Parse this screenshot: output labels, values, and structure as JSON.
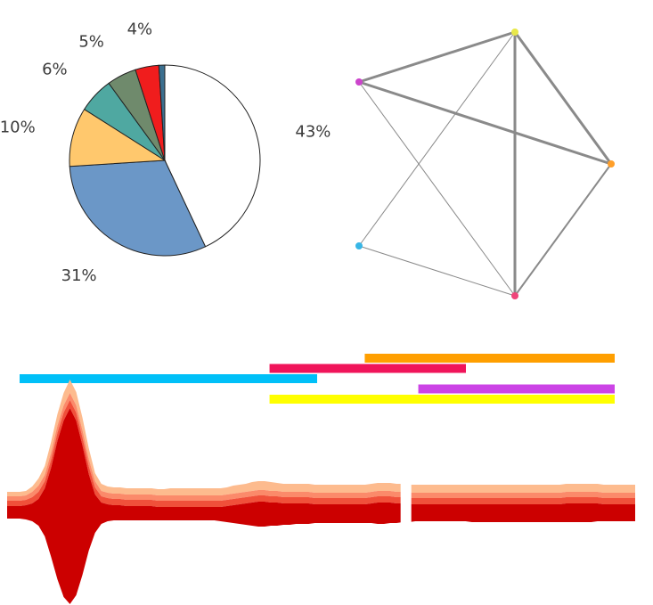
{
  "chart_data": [
    {
      "type": "pie",
      "slices": [
        {
          "label": "43%",
          "value": 43,
          "color": "#ffffff"
        },
        {
          "label": "31%",
          "value": 31,
          "color": "#6b97c7"
        },
        {
          "label": "10%",
          "value": 10,
          "color": "#ffc86d"
        },
        {
          "label": "6%",
          "value": 6,
          "color": "#4fa8a1"
        },
        {
          "label": "5%",
          "value": 5,
          "color": "#6f8a6c"
        },
        {
          "label": "4%",
          "value": 4,
          "color": "#f01d1d"
        },
        {
          "label": "",
          "value": 1,
          "color": "#3b6f8f"
        }
      ]
    },
    {
      "type": "network",
      "nodes": [
        {
          "id": "top",
          "color": "#e8e84a"
        },
        {
          "id": "left",
          "color": "#cc44cc"
        },
        {
          "id": "right",
          "color": "#ff9f2a"
        },
        {
          "id": "lower-left",
          "color": "#38b6e6"
        },
        {
          "id": "bottom",
          "color": "#f0457a"
        }
      ],
      "edges": [
        {
          "source": "top",
          "target": "left",
          "weight": 3
        },
        {
          "source": "top",
          "target": "right",
          "weight": 3
        },
        {
          "source": "left",
          "target": "right",
          "weight": 3
        },
        {
          "source": "top",
          "target": "bottom",
          "weight": 3
        },
        {
          "source": "right",
          "target": "bottom",
          "weight": 2
        },
        {
          "source": "top",
          "target": "lower-left",
          "weight": 1
        },
        {
          "source": "left",
          "target": "bottom",
          "weight": 1
        },
        {
          "source": "lower-left",
          "target": "bottom",
          "weight": 1
        }
      ]
    },
    {
      "type": "timeline",
      "range": [
        0,
        100
      ],
      "bars": [
        {
          "start": 58,
          "end": 100,
          "row": 0,
          "color": "#ff9f00"
        },
        {
          "start": 42,
          "end": 75,
          "row": 1,
          "color": "#f0145a"
        },
        {
          "start": 0,
          "end": 50,
          "row": 2,
          "color": "#00c0f8"
        },
        {
          "start": 67,
          "end": 100,
          "row": 3,
          "color": "#cc44e6"
        },
        {
          "start": 42,
          "end": 100,
          "row": 4,
          "color": "#ffff00"
        }
      ]
    },
    {
      "type": "area",
      "stacked": true,
      "layers": [
        {
          "color": "#cc0000",
          "above": [
            2,
            2,
            2,
            3,
            5,
            10,
            22,
            45,
            75,
            98,
            112,
            98,
            70,
            38,
            15,
            6,
            4,
            3,
            3,
            2,
            2,
            2,
            2,
            2,
            1,
            1,
            1,
            1,
            1,
            1,
            1,
            1,
            1,
            1,
            1,
            2,
            3,
            4,
            5,
            6,
            7,
            7,
            6,
            6,
            5,
            5,
            5,
            5,
            5,
            4,
            4,
            4,
            4,
            4,
            4,
            4,
            4,
            4,
            5,
            6,
            6,
            6,
            5,
            5,
            4,
            4,
            4,
            4,
            4,
            4,
            4,
            4,
            4,
            4,
            4,
            4,
            4,
            4,
            4,
            4,
            4,
            4,
            4,
            4,
            4,
            4,
            4,
            4,
            4,
            5,
            5,
            5,
            5,
            5,
            5,
            4,
            4,
            4,
            4,
            4,
            4
          ],
          "below": [
            12,
            12,
            12,
            13,
            15,
            20,
            32,
            55,
            80,
            100,
            108,
            98,
            75,
            48,
            28,
            18,
            15,
            14,
            14,
            14,
            14,
            14,
            14,
            14,
            14,
            14,
            14,
            14,
            14,
            14,
            14,
            14,
            14,
            14,
            15,
            16,
            17,
            18,
            19,
            20,
            21,
            21,
            20,
            20,
            19,
            19,
            18,
            18,
            18,
            17,
            17,
            17,
            17,
            17,
            17,
            17,
            17,
            17,
            17,
            18,
            18,
            17,
            17,
            16,
            16,
            15,
            15,
            15,
            15,
            15,
            15,
            15,
            15,
            15,
            16,
            16,
            16,
            16,
            16,
            16,
            16,
            16,
            16,
            16,
            16,
            16,
            16,
            16,
            16,
            16,
            16,
            16,
            16,
            16,
            15,
            15,
            15,
            15,
            15,
            15,
            15
          ]
        },
        {
          "color": "#f0503a",
          "above": [
            6,
            6,
            6,
            6,
            7,
            8,
            8,
            9,
            9,
            9,
            9,
            9,
            9,
            9,
            8,
            7,
            7,
            7,
            7,
            7,
            7,
            7,
            7,
            7,
            7,
            7,
            7,
            7,
            7,
            7,
            7,
            7,
            7,
            7,
            7,
            7,
            7,
            7,
            7,
            7,
            7,
            7,
            7,
            7,
            7,
            7,
            7,
            7,
            7,
            7,
            7,
            7,
            7,
            7,
            7,
            7,
            7,
            7,
            7,
            7,
            7,
            7,
            7,
            7,
            7,
            7,
            7,
            7,
            7,
            7,
            7,
            7,
            7,
            7,
            7,
            7,
            7,
            7,
            7,
            7,
            7,
            7,
            7,
            7,
            7,
            7,
            7,
            7,
            7,
            7,
            7,
            7,
            7,
            7,
            7,
            7,
            7,
            7,
            7,
            7,
            7
          ]
        },
        {
          "color": "#fb8a6a",
          "above": [
            5,
            5,
            5,
            5,
            6,
            7,
            7,
            8,
            8,
            8,
            8,
            8,
            8,
            8,
            7,
            6,
            6,
            6,
            6,
            6,
            6,
            6,
            6,
            6,
            6,
            6,
            6,
            6,
            6,
            6,
            6,
            6,
            6,
            6,
            6,
            6,
            6,
            6,
            6,
            6,
            6,
            6,
            6,
            6,
            6,
            6,
            6,
            6,
            6,
            6,
            6,
            6,
            6,
            6,
            6,
            6,
            6,
            6,
            6,
            6,
            6,
            6,
            6,
            6,
            6,
            6,
            6,
            6,
            6,
            6,
            6,
            6,
            6,
            6,
            6,
            6,
            6,
            6,
            6,
            6,
            6,
            6,
            6,
            6,
            6,
            6,
            6,
            6,
            6,
            6,
            6,
            6,
            6,
            6,
            6,
            6,
            6,
            6,
            6,
            6,
            6
          ]
        },
        {
          "color": "#fdbb8e",
          "above": [
            5,
            5,
            5,
            5,
            6,
            8,
            10,
            12,
            13,
            14,
            15,
            15,
            14,
            12,
            9,
            8,
            7,
            7,
            7,
            7,
            7,
            7,
            7,
            7,
            7,
            7,
            8,
            8,
            8,
            8,
            8,
            8,
            8,
            8,
            8,
            8,
            9,
            9,
            9,
            10,
            10,
            10,
            10,
            9,
            9,
            9,
            9,
            9,
            9,
            9,
            9,
            9,
            9,
            9,
            9,
            9,
            9,
            9,
            9,
            9,
            9,
            9,
            9,
            9,
            9,
            9,
            9,
            9,
            9,
            9,
            9,
            9,
            9,
            9,
            9,
            9,
            9,
            9,
            9,
            9,
            9,
            9,
            9,
            9,
            9,
            9,
            9,
            9,
            9,
            9,
            9,
            9,
            9,
            9,
            9,
            9,
            9,
            9,
            9,
            9,
            9
          ]
        }
      ],
      "gap": [
        63,
        64
      ]
    }
  ]
}
